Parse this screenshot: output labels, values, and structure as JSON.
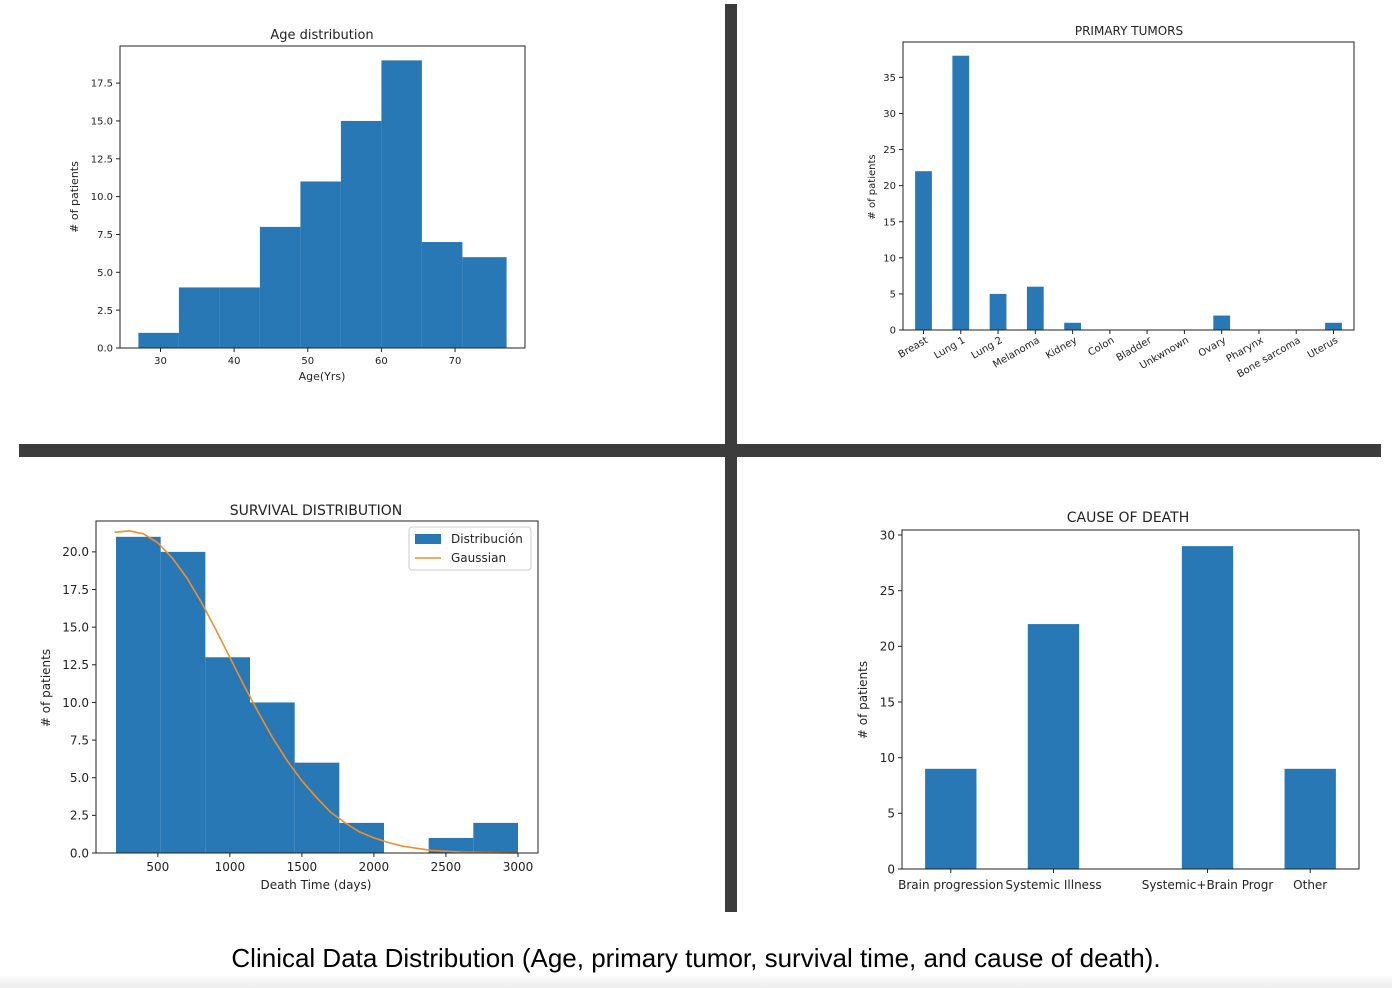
{
  "caption": "Clinical Data Distribution (Age, primary tumor, survival time, and cause of death).",
  "colors": {
    "bar": "#2878b5",
    "gaussian": "#f28e2b",
    "divider": "#3c3c3c",
    "axis": "#222222"
  },
  "chart_data": [
    {
      "type": "bar",
      "title": "Age distribution",
      "xlabel": "Age(Yrs)",
      "ylabel": "# of patients",
      "bins": [
        {
          "x0": 27,
          "x1": 32.5,
          "value": 1
        },
        {
          "x0": 32.5,
          "x1": 38,
          "value": 4
        },
        {
          "x0": 38,
          "x1": 43.5,
          "value": 4
        },
        {
          "x0": 43.5,
          "x1": 49,
          "value": 8
        },
        {
          "x0": 49,
          "x1": 54.5,
          "value": 11
        },
        {
          "x0": 54.5,
          "x1": 60,
          "value": 15
        },
        {
          "x0": 60,
          "x1": 65.5,
          "value": 19
        },
        {
          "x0": 65.5,
          "x1": 71,
          "value": 7
        },
        {
          "x0": 71,
          "x1": 77,
          "value": 6
        }
      ],
      "xlim": [
        24.5,
        79.5
      ],
      "ylim": [
        0,
        19.95
      ],
      "xticks": [
        30,
        40,
        50,
        60,
        70
      ],
      "xtick_labels": [
        "30",
        "40",
        "50",
        "60",
        "70"
      ],
      "yticks": [
        0,
        2.5,
        5,
        7.5,
        10,
        12.5,
        15,
        17.5
      ],
      "ytick_labels": [
        "0.0",
        "2.5",
        "5.0",
        "7.5",
        "10.0",
        "12.5",
        "15.0",
        "17.5"
      ]
    },
    {
      "type": "bar",
      "title": "PRIMARY TUMORS",
      "xlabel": "",
      "ylabel": "# of patients",
      "categories": [
        "Breast",
        "Lung 1",
        "Lung 2",
        "Melanoma",
        "Kidney",
        "Colon",
        "Bladder",
        "Unkwnown",
        "Ovary",
        "Pharynx",
        "Bone sarcoma",
        "Uterus"
      ],
      "values": [
        22,
        38,
        5,
        6,
        1,
        0,
        0,
        0,
        2,
        0,
        0,
        1
      ],
      "ylim": [
        0,
        39.9
      ],
      "yticks": [
        0,
        5,
        10,
        15,
        20,
        25,
        30,
        35
      ],
      "ytick_labels": [
        "0",
        "5",
        "10",
        "15",
        "20",
        "25",
        "30",
        "35"
      ]
    },
    {
      "type": "bar",
      "title": "SURVIVAL DISTRIBUTION",
      "xlabel": "Death Time (days)",
      "ylabel": "# of patients",
      "legend": [
        "Distribución",
        "Gaussian"
      ],
      "legend_position": "top-right",
      "bins": [
        {
          "x0": 210,
          "x1": 520,
          "value": 21
        },
        {
          "x0": 520,
          "x1": 830,
          "value": 20
        },
        {
          "x0": 830,
          "x1": 1140,
          "value": 13
        },
        {
          "x0": 1140,
          "x1": 1450,
          "value": 10
        },
        {
          "x0": 1450,
          "x1": 1760,
          "value": 6
        },
        {
          "x0": 1760,
          "x1": 2070,
          "value": 2
        },
        {
          "x0": 2070,
          "x1": 2380,
          "value": 0
        },
        {
          "x0": 2380,
          "x1": 2690,
          "value": 1
        },
        {
          "x0": 2690,
          "x1": 3000,
          "value": 2
        }
      ],
      "gaussian": {
        "x": [
          200,
          300,
          400,
          500,
          600,
          700,
          800,
          900,
          1000,
          1100,
          1200,
          1300,
          1400,
          1500,
          1600,
          1700,
          1800,
          1900,
          2000,
          2100,
          2200,
          2400,
          2600,
          2800,
          3000
        ],
        "y": [
          21.3,
          21.4,
          21.2,
          20.6,
          19.6,
          18.3,
          16.7,
          14.9,
          13.0,
          11.1,
          9.3,
          7.6,
          6.1,
          4.8,
          3.7,
          2.7,
          2.0,
          1.4,
          1.0,
          0.7,
          0.45,
          0.17,
          0.06,
          0.02,
          0.0
        ]
      },
      "xlim": [
        71,
        3139
      ],
      "ylim": [
        0,
        22.05
      ],
      "xticks": [
        500,
        1000,
        1500,
        2000,
        2500,
        3000
      ],
      "xtick_labels": [
        "500",
        "1000",
        "1500",
        "2000",
        "2500",
        "3000"
      ],
      "yticks": [
        0,
        2.5,
        5,
        7.5,
        10,
        12.5,
        15,
        17.5,
        20
      ],
      "ytick_labels": [
        "0.0",
        "2.5",
        "5.0",
        "7.5",
        "10.0",
        "12.5",
        "15.0",
        "17.5",
        "20.0"
      ]
    },
    {
      "type": "bar",
      "title": "CAUSE OF DEATH",
      "xlabel": "",
      "ylabel": "# of patients",
      "categories": [
        "Brain progression",
        "Systemic Illness",
        "Systemic+Brain Progr",
        "Other"
      ],
      "x": [
        0,
        2,
        5,
        7
      ],
      "values": [
        9,
        22,
        29,
        9
      ],
      "xlim": [
        -0.95,
        7.95
      ],
      "ylim": [
        0,
        30.45
      ],
      "yticks": [
        0,
        5,
        10,
        15,
        20,
        25,
        30
      ],
      "ytick_labels": [
        "0",
        "5",
        "10",
        "15",
        "20",
        "25",
        "30"
      ]
    }
  ]
}
